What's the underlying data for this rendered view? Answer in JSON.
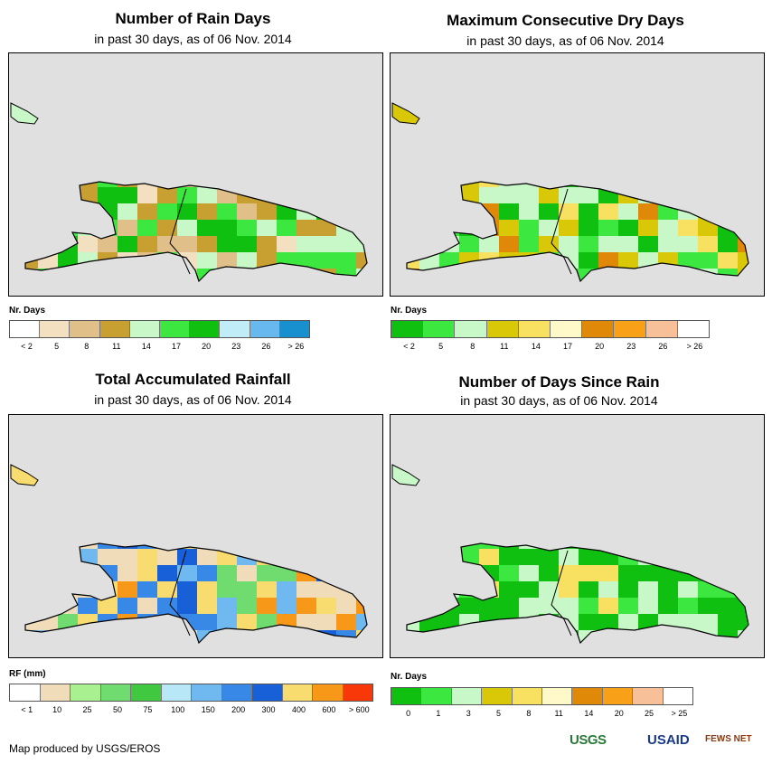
{
  "colors": {
    "map_bg": "#e0e0e0",
    "outline": "#000000"
  },
  "panels": [
    {
      "id": "rain-days",
      "title": "Number of Rain Days",
      "subtitle": "in past 30 days, as of 06 Nov. 2014",
      "legend_title": "Nr. Days",
      "legend_colors": [
        "#ffffff",
        "#f2e0c0",
        "#e0c088",
        "#c8a032",
        "#c8f8c8",
        "#3ce840",
        "#10c010",
        "#c0ecf8",
        "#68b8f0",
        "#1890d0"
      ],
      "legend_labels": [
        "< 2",
        "5",
        "8",
        "11",
        "14",
        "17",
        "20",
        "23",
        "26",
        "> 26"
      ]
    },
    {
      "id": "max-dry-days",
      "title": "Maximum Consecutive Dry Days",
      "subtitle": "in past 30 days, as of 06 Nov. 2014",
      "legend_title": "Nr. Days",
      "legend_colors": [
        "#10c010",
        "#3ce840",
        "#c8f8c8",
        "#d8c808",
        "#f8e060",
        "#fff8c8",
        "#e08808",
        "#f8a018",
        "#f8c098",
        "#ffffff"
      ],
      "legend_labels": [
        "< 2",
        "5",
        "8",
        "11",
        "14",
        "17",
        "20",
        "23",
        "26",
        "> 26"
      ]
    },
    {
      "id": "total-rainfall",
      "title": "Total Accumulated Rainfall",
      "subtitle": "in past 30 days, as of 06 Nov. 2014",
      "legend_title": "RF (mm)",
      "legend_colors": [
        "#ffffff",
        "#f0dcb8",
        "#a8f090",
        "#70dc70",
        "#40c840",
        "#b8e8f8",
        "#70b8f0",
        "#3888e8",
        "#1860d8",
        "#f8dc70",
        "#f89818",
        "#f83808"
      ],
      "legend_labels": [
        "< 1",
        "10",
        "25",
        "50",
        "75",
        "100",
        "150",
        "200",
        "300",
        "400",
        "600",
        "> 600"
      ]
    },
    {
      "id": "days-since-rain",
      "title": "Number of Days Since Rain",
      "subtitle": "in past 30 days, as of 06 Nov. 2014",
      "legend_title": "Nr. Days",
      "legend_colors": [
        "#10c010",
        "#3ce840",
        "#c8f8c8",
        "#d8c808",
        "#f8e060",
        "#fff8c8",
        "#e08808",
        "#f8a018",
        "#f8c098",
        "#ffffff"
      ],
      "legend_labels": [
        "0",
        "1",
        "3",
        "5",
        "8",
        "11",
        "14",
        "20",
        "25",
        "> 25"
      ]
    }
  ],
  "footer": {
    "credit": "Map produced by USGS/EROS",
    "logo_usgs": "USGS",
    "logo_usaid": "USAID",
    "logo_fews": "FEWS NET"
  }
}
